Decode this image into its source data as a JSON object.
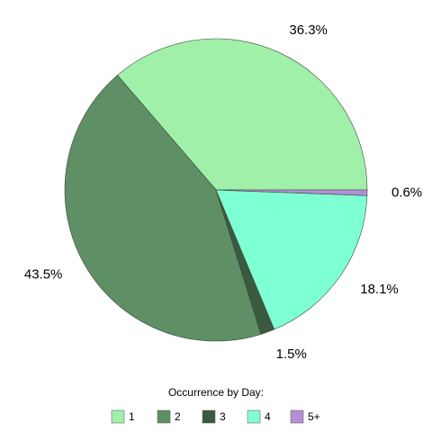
{
  "chart_data": {
    "type": "pie",
    "legend_title": "Occurrence by Day:",
    "categories": [
      "1",
      "2",
      "3",
      "4",
      "5+"
    ],
    "values": [
      36.3,
      43.5,
      1.5,
      18.1,
      0.6
    ],
    "value_labels": [
      "36.3%",
      "43.5%",
      "1.5%",
      "18.1%",
      "0.6%"
    ],
    "colors": [
      "#a0f0aa",
      "#5f8f64",
      "#3a5a3f",
      "#7fffd4",
      "#b38fd6"
    ],
    "legend": "bottom"
  }
}
